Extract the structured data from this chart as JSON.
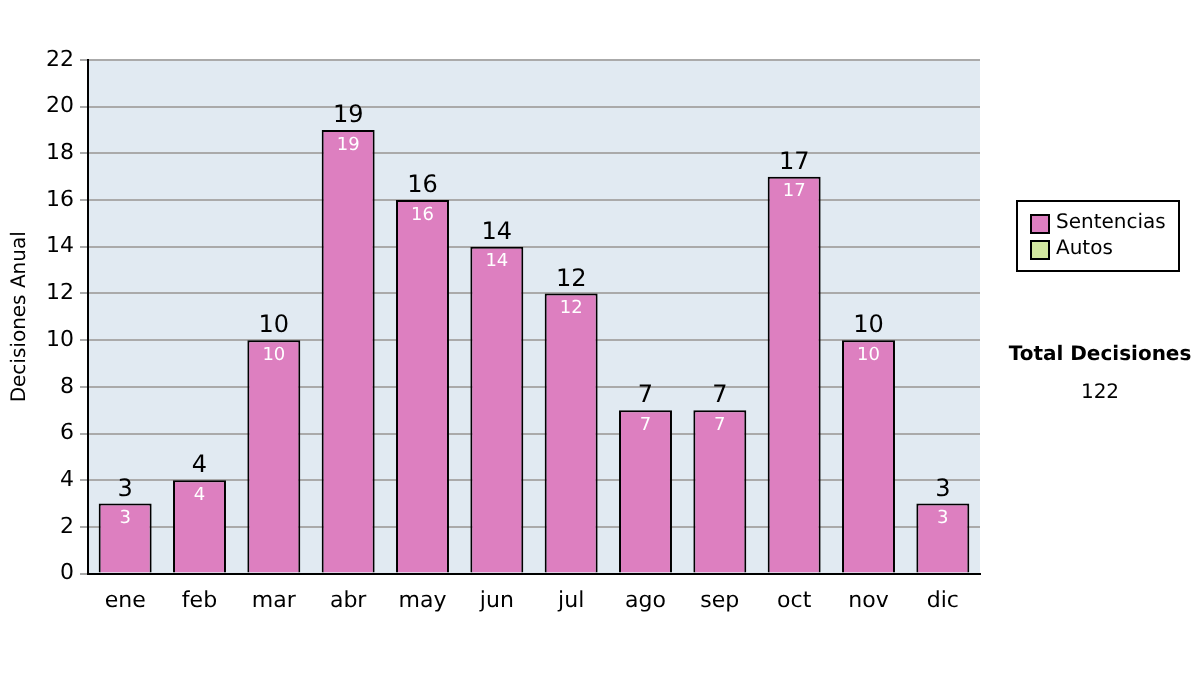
{
  "chart_data": {
    "type": "bar",
    "ylabel": "Decisiones Anual",
    "categories": [
      "ene",
      "feb",
      "mar",
      "abr",
      "may",
      "jun",
      "jul",
      "ago",
      "sep",
      "oct",
      "nov",
      "dic"
    ],
    "series": [
      {
        "name": "Sentencias",
        "color": "#dd7fc0",
        "values": [
          3,
          4,
          10,
          19,
          16,
          14,
          12,
          7,
          7,
          17,
          10,
          3
        ],
        "value_labels": [
          "3",
          "4",
          "10",
          "19",
          "16",
          "14",
          "12",
          "7",
          "7",
          "17",
          "10",
          "3"
        ]
      },
      {
        "name": "Autos",
        "color": "#d4e8a0",
        "values": [
          null,
          null,
          null,
          null,
          null,
          null,
          null,
          null,
          null,
          null,
          null,
          null
        ]
      }
    ],
    "ylim": [
      0,
      22
    ],
    "yticks": [
      0,
      2,
      4,
      6,
      8,
      10,
      12,
      14,
      16,
      18,
      20,
      22
    ],
    "grid": "y",
    "legend": "right",
    "annotations": [
      "Total Decisiones",
      "122",
      {
        "text": "3",
        "x": "ene",
        "y": 3
      },
      {
        "text": "4",
        "x": "feb",
        "y": 4
      },
      {
        "text": "10",
        "x": "mar",
        "y": 10
      },
      {
        "text": "19",
        "x": "abr",
        "y": 19
      },
      {
        "text": "16",
        "x": "may",
        "y": 16
      },
      {
        "text": "14",
        "x": "jun",
        "y": 14
      },
      {
        "text": "12",
        "x": "jul",
        "y": 12
      },
      {
        "text": "7",
        "x": "ago",
        "y": 7
      },
      {
        "text": "7",
        "x": "sep",
        "y": 7
      },
      {
        "text": "17",
        "x": "oct",
        "y": 17
      },
      {
        "text": "10",
        "x": "nov",
        "y": 10
      },
      {
        "text": "3",
        "x": "dic",
        "y": 3
      }
    ]
  }
}
